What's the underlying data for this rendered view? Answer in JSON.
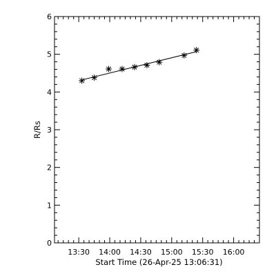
{
  "chart_data": {
    "type": "scatter",
    "title": "",
    "xlabel": "Start Time (26-Apr-25 13:06:31)",
    "ylabel": "R/Rs",
    "x_tick_labels": [
      "13:30",
      "14:00",
      "14:30",
      "15:00",
      "15:30",
      "16:00"
    ],
    "y_tick_labels": [
      "0",
      "1",
      "2",
      "3",
      "4",
      "5",
      "6"
    ],
    "x_range": [
      "13:06:31",
      "16:25:00"
    ],
    "ylim": [
      0,
      6
    ],
    "marker": "asterisk",
    "series": [
      {
        "x": [
          "13:33",
          "13:45",
          "13:59",
          "14:12",
          "14:24",
          "14:36",
          "14:48",
          "15:12",
          "15:24"
        ],
        "y": [
          4.3,
          4.38,
          4.61,
          4.61,
          4.66,
          4.71,
          4.79,
          4.97,
          5.11
        ]
      }
    ],
    "fit_line": {
      "x": [
        "13:33",
        "15:24"
      ],
      "y": [
        4.32,
        5.07
      ]
    },
    "grid": false,
    "legend": "none"
  }
}
